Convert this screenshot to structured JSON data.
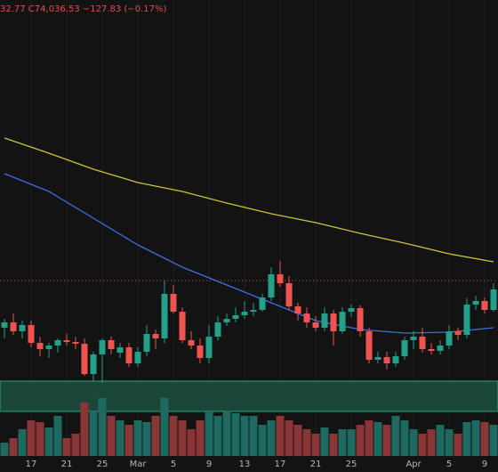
{
  "chart_data": {
    "type": "candlestick",
    "header": "32.77 C74,036.53 −127.83 (−0.17%)",
    "categories": [
      null,
      null,
      null,
      "17",
      null,
      null,
      null,
      "21",
      null,
      null,
      null,
      "25",
      null,
      null,
      null,
      "Mar",
      null,
      null,
      null,
      "5",
      null,
      null,
      null,
      "9",
      null,
      null,
      null,
      "13",
      null,
      null,
      null,
      "17",
      null,
      null,
      null,
      "21",
      null,
      null,
      null,
      "25",
      null,
      null,
      null,
      null,
      null,
      null,
      "Apr",
      null,
      null,
      null,
      "5",
      null,
      null,
      null,
      "9",
      null
    ],
    "open": [
      69700,
      70300,
      69300,
      70000,
      68000,
      67300,
      67700,
      68300,
      68100,
      67900,
      64500,
      66700,
      68300,
      66900,
      67500,
      65700,
      67000,
      69000,
      68500,
      73500,
      71500,
      68300,
      67700,
      66300,
      68700,
      70300,
      70700,
      71100,
      71500,
      71700,
      73100,
      75700,
      74700,
      72100,
      71300,
      70300,
      69700,
      71300,
      69300,
      71500,
      71900,
      69300,
      66100,
      66400,
      65700,
      66500,
      68300,
      68700,
      67300,
      67100,
      67700,
      69300,
      68900,
      72300,
      72700,
      71700
    ],
    "high": [
      70700,
      71300,
      70500,
      70500,
      68700,
      68000,
      68500,
      69000,
      68700,
      68500,
      67000,
      68500,
      68700,
      68000,
      68000,
      67500,
      70000,
      69500,
      75000,
      74500,
      72000,
      69300,
      68500,
      70000,
      71000,
      71300,
      72000,
      72700,
      72500,
      73500,
      76500,
      77200,
      75500,
      72500,
      72000,
      71000,
      72000,
      71700,
      72000,
      72300,
      72200,
      69700,
      67000,
      67000,
      67000,
      68700,
      69300,
      69700,
      68000,
      68300,
      70000,
      69700,
      73000,
      73300,
      73100,
      74700
    ],
    "low": [
      68500,
      68900,
      68500,
      67500,
      66500,
      66300,
      66900,
      67700,
      67300,
      64300,
      63700,
      63500,
      66700,
      66300,
      65300,
      65300,
      66500,
      67300,
      68000,
      71300,
      68000,
      67300,
      65700,
      65700,
      68300,
      69900,
      70300,
      70700,
      71000,
      71500,
      72700,
      74300,
      71700,
      70500,
      69700,
      69300,
      69300,
      67700,
      69000,
      70900,
      68700,
      65700,
      65700,
      65000,
      65300,
      66100,
      67300,
      66900,
      66700,
      66700,
      67300,
      68300,
      68500,
      71700,
      71300,
      71500
    ],
    "close": [
      70300,
      69300,
      70000,
      68000,
      67300,
      67700,
      68300,
      68100,
      67900,
      64500,
      66700,
      68300,
      67300,
      67500,
      65700,
      67000,
      69000,
      68500,
      73500,
      71500,
      68300,
      67700,
      66300,
      68700,
      70300,
      70700,
      71100,
      71500,
      71700,
      73100,
      75700,
      74700,
      72100,
      71300,
      70300,
      69700,
      71300,
      69300,
      71500,
      71900,
      69300,
      66100,
      66400,
      65700,
      66500,
      68300,
      68700,
      67300,
      67100,
      67700,
      69300,
      68900,
      72300,
      72700,
      71700,
      74000
    ],
    "volume": [
      15000,
      20000,
      30000,
      40000,
      38000,
      32000,
      45000,
      20000,
      25000,
      60000,
      50000,
      65000,
      45000,
      40000,
      35000,
      40000,
      38000,
      45000,
      65000,
      45000,
      40000,
      30000,
      40000,
      50000,
      45000,
      50000,
      48000,
      45000,
      45000,
      35000,
      40000,
      45000,
      40000,
      35000,
      30000,
      25000,
      32000,
      25000,
      30000,
      30000,
      35000,
      40000,
      38000,
      35000,
      45000,
      40000,
      30000,
      25000,
      30000,
      35000,
      30000,
      25000,
      38000,
      40000,
      38000,
      35000
    ],
    "ylim": [
      60500,
      106500
    ],
    "vlim": [
      0,
      70000
    ],
    "up_color": "#22a08a",
    "down_color": "#ef5350",
    "up_volume_color": "#1e6a60",
    "down_volume_color": "#8a3636",
    "price_line": {
      "value": 75000,
      "color": "#c0504d"
    },
    "zone": {
      "range": [
        60300,
        63700
      ],
      "color": "#1d5a48"
    },
    "series": [
      {
        "color": "#c9c43a",
        "x": [
          0,
          5,
          10,
          15,
          20,
          25,
          30,
          35,
          40,
          45,
          50,
          55
        ],
        "values": [
          91000,
          89300,
          87500,
          86000,
          85000,
          83700,
          82500,
          81500,
          80300,
          79200,
          78000,
          77100
        ]
      },
      {
        "color": "#3b6fe0",
        "x": [
          0,
          5,
          10,
          15,
          20,
          25,
          30,
          35,
          40,
          45,
          50,
          55
        ],
        "values": [
          87000,
          85000,
          82000,
          79000,
          76500,
          74500,
          72500,
          70500,
          69500,
          69100,
          69200,
          69700
        ]
      }
    ]
  }
}
